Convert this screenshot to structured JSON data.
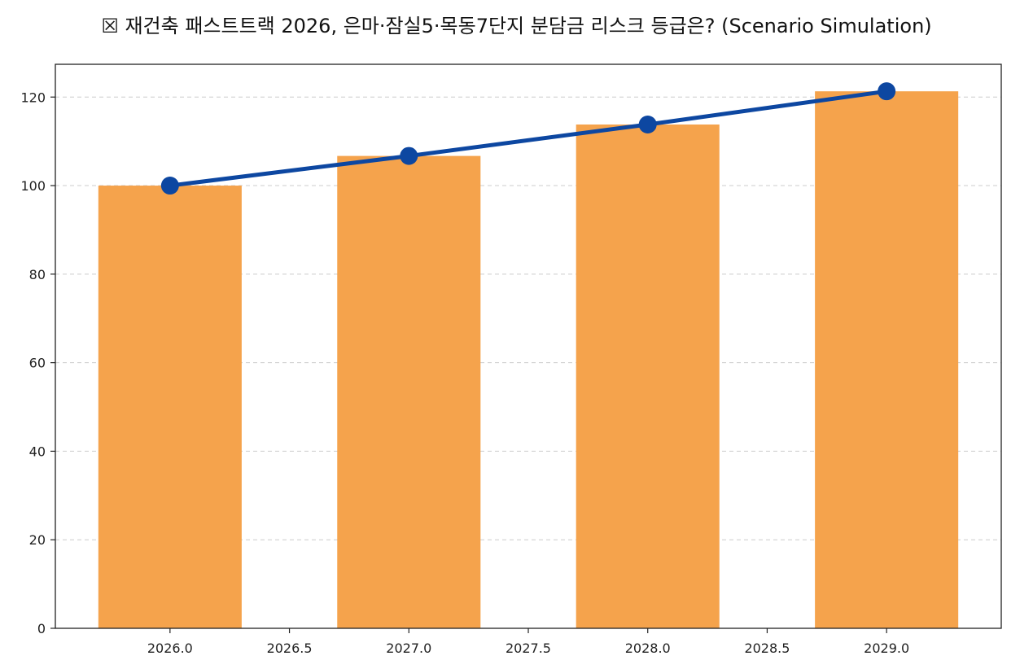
{
  "chart_data": {
    "type": "bar",
    "title": "☒ 재건축 패스트트랙 2026, 은마·잠실5·목동7단지 분담금 리스크 등급은? (Scenario Simulation)",
    "xlabel": "",
    "ylabel": "",
    "x": [
      2026,
      2027,
      2028,
      2029
    ],
    "series": [
      {
        "type": "bar",
        "values": [
          100,
          106.7,
          113.8,
          121.3
        ],
        "color": "#F5A34C"
      },
      {
        "type": "line",
        "values": [
          100,
          106.7,
          113.8,
          121.3
        ],
        "color": "#0D47A1",
        "marker": "circle"
      }
    ],
    "xlim": [
      2025.52,
      2029.48
    ],
    "ylim": [
      0,
      127.4
    ],
    "xticks": [
      2026.0,
      2026.5,
      2027.0,
      2027.5,
      2028.0,
      2028.5,
      2029.0
    ],
    "xtick_labels": [
      "2026.0",
      "2026.5",
      "2027.0",
      "2027.5",
      "2028.0",
      "2028.5",
      "2029.0"
    ],
    "yticks": [
      0,
      20,
      40,
      60,
      80,
      100,
      120
    ],
    "ytick_labels": [
      "0",
      "20",
      "40",
      "60",
      "80",
      "100",
      "120"
    ],
    "bar_width": 0.6,
    "grid": "y-dashed",
    "legend": "none"
  }
}
